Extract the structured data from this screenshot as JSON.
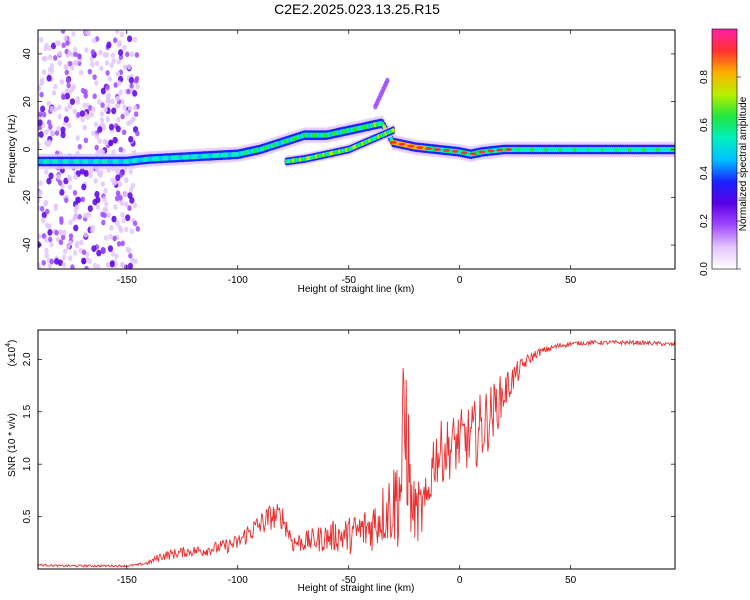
{
  "title": "C2E2.2025.023.13.25.R15",
  "colorbar": {
    "label": "Normalized spectral amplitude",
    "ticks": [
      "0.0",
      "0.2",
      "0.4",
      "0.6",
      "0.8"
    ],
    "tick_values": [
      0.0,
      0.2,
      0.4,
      0.6,
      0.8
    ],
    "range": [
      0,
      1
    ],
    "colors": [
      "#ffffff",
      "#e4c6ff",
      "#a04aff",
      "#5a00e6",
      "#1a22ff",
      "#00c0ff",
      "#00f0c0",
      "#20e640",
      "#b8f000",
      "#ffb000",
      "#ff3030",
      "#ff22aa"
    ]
  },
  "chart_data": [
    {
      "type": "heatmap",
      "ylabel": "Frequency (Hz)",
      "xlabel": "Height of straight line (km)",
      "xlim": [
        -190,
        97
      ],
      "ylim": [
        -50,
        50
      ],
      "xticks": [
        "-150",
        "-100",
        "-50",
        "0",
        "50"
      ],
      "xtick_values": [
        -150,
        -100,
        -50,
        0,
        50
      ],
      "yticks": [
        "-40",
        "-20",
        "0",
        "20",
        "40"
      ],
      "ytick_values": [
        -40,
        -20,
        0,
        20,
        40
      ],
      "ridge_main": {
        "x": [
          -190,
          -160,
          -150,
          -140,
          -120,
          -100,
          -90,
          -80,
          -70,
          -65,
          -60,
          -55,
          -50,
          -45,
          -40,
          -35,
          -30,
          -25,
          -20,
          -10,
          0,
          5,
          10,
          20,
          40,
          60,
          97
        ],
        "y": [
          -5,
          -5,
          -5,
          -4,
          -3,
          -2,
          0,
          3,
          6,
          6,
          6,
          7,
          8,
          9,
          10,
          11,
          3,
          2,
          1,
          0,
          -1,
          -2,
          -1,
          0,
          0,
          0,
          0
        ]
      },
      "ridge_secondary": {
        "x": [
          -78,
          -70,
          -60,
          -55,
          -50,
          -45,
          -40,
          -35,
          -30
        ],
        "y": [
          -5,
          -4,
          -2,
          -1,
          0,
          2,
          4,
          6,
          8
        ]
      },
      "ridge_upper": {
        "x": [
          -38,
          -35,
          -32
        ],
        "y": [
          18,
          24,
          30
        ]
      },
      "noise_region_x": [
        -190,
        -145
      ]
    },
    {
      "type": "line",
      "ylabel": "SNR (10 * v/v)",
      "exponent_label": "(x10",
      "exponent_power": "4",
      "exponent_close": ")",
      "xlabel": "Height of straight line (km)",
      "xlim": [
        -190,
        97
      ],
      "ylim": [
        0,
        2.28
      ],
      "xticks": [
        "-150",
        "-100",
        "-50",
        "0",
        "50"
      ],
      "xtick_values": [
        -150,
        -100,
        -50,
        0,
        50
      ],
      "yticks": [
        "0.5",
        "1.0",
        "1.5",
        "2.0"
      ],
      "ytick_values": [
        0.5,
        1.0,
        1.5,
        2.0
      ],
      "series": [
        {
          "color": "#e83030",
          "x": [
            -190,
            -180,
            -170,
            -160,
            -150,
            -145,
            -140,
            -135,
            -130,
            -125,
            -120,
            -115,
            -110,
            -105,
            -100,
            -95,
            -90,
            -85,
            -80,
            -75,
            -70,
            -65,
            -60,
            -55,
            -50,
            -45,
            -40,
            -35,
            -30,
            -27,
            -25,
            -24,
            -22,
            -20,
            -18,
            -15,
            -12,
            -10,
            -5,
            0,
            5,
            10,
            15,
            20,
            25,
            30,
            35,
            40,
            45,
            50,
            60,
            70,
            80,
            90,
            97
          ],
          "y": [
            0.04,
            0.03,
            0.03,
            0.03,
            0.03,
            0.04,
            0.06,
            0.12,
            0.14,
            0.16,
            0.17,
            0.18,
            0.2,
            0.22,
            0.25,
            0.35,
            0.42,
            0.5,
            0.5,
            0.25,
            0.26,
            0.28,
            0.3,
            0.32,
            0.32,
            0.36,
            0.4,
            0.52,
            0.62,
            0.75,
            1.2,
            1.4,
            0.6,
            0.55,
            0.55,
            0.58,
            1.05,
            1.1,
            1.15,
            1.22,
            1.25,
            1.35,
            1.5,
            1.68,
            1.85,
            1.98,
            2.06,
            2.1,
            2.13,
            2.15,
            2.16,
            2.16,
            2.16,
            2.15,
            2.14
          ],
          "noise_amp": [
            0.01,
            0.01,
            0.01,
            0.01,
            0.01,
            0.01,
            0.02,
            0.04,
            0.05,
            0.05,
            0.05,
            0.06,
            0.06,
            0.07,
            0.08,
            0.1,
            0.12,
            0.13,
            0.12,
            0.1,
            0.1,
            0.12,
            0.14,
            0.16,
            0.18,
            0.2,
            0.24,
            0.3,
            0.4,
            0.6,
            0.95,
            0.9,
            0.3,
            0.3,
            0.3,
            0.3,
            0.28,
            0.3,
            0.3,
            0.3,
            0.32,
            0.35,
            0.28,
            0.2,
            0.12,
            0.06,
            0.04,
            0.03,
            0.03,
            0.02,
            0.02,
            0.02,
            0.02,
            0.02,
            0.02
          ]
        }
      ]
    }
  ]
}
